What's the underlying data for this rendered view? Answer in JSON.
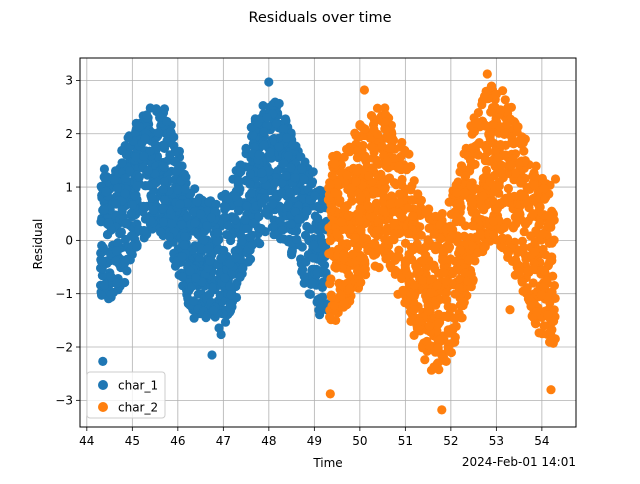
{
  "chart_data": {
    "type": "scatter",
    "title": "Residuals over time",
    "xlabel": "Time",
    "ylabel": "Residual",
    "x_offset_label": "2024-Feb-01 14:01",
    "xlim": [
      43.85,
      54.75
    ],
    "ylim": [
      -3.5,
      3.42
    ],
    "x_ticks": [
      44,
      45,
      46,
      47,
      48,
      49,
      50,
      51,
      52,
      53,
      54
    ],
    "y_ticks": [
      -3,
      -2,
      -1,
      0,
      1,
      2,
      3
    ],
    "grid": true,
    "legend_position": "lower-left",
    "series": [
      {
        "name": "char_1",
        "color": "#1f77b4",
        "x_range": [
          44.3,
          49.3
        ],
        "center": [
          [
            44.3,
            0.0
          ],
          [
            45.5,
            1.4
          ],
          [
            46.5,
            -0.3
          ],
          [
            46.9,
            -0.4
          ],
          [
            48.0,
            1.4
          ],
          [
            49.3,
            -0.2
          ]
        ],
        "halfwidth": 1.3,
        "outliers": [
          [
            44.35,
            -2.27
          ],
          [
            48.0,
            2.97
          ],
          [
            46.75,
            -2.15
          ]
        ]
      },
      {
        "name": "char_2",
        "color": "#ff7f0e",
        "x_range": [
          49.3,
          54.3
        ],
        "center": [
          [
            49.3,
            0.0
          ],
          [
            50.5,
            1.0
          ],
          [
            51.7,
            -1.0
          ],
          [
            52.9,
            1.4
          ],
          [
            54.3,
            -0.5
          ]
        ],
        "halfwidth": 1.6,
        "outliers": [
          [
            52.8,
            3.12
          ],
          [
            51.8,
            -3.18
          ],
          [
            49.35,
            -2.88
          ],
          [
            50.1,
            2.82
          ],
          [
            54.2,
            -2.8
          ],
          [
            54.3,
            1.15
          ],
          [
            49.35,
            1.05
          ],
          [
            50.9,
            1.75
          ],
          [
            53.3,
            -1.3
          ]
        ]
      }
    ]
  }
}
